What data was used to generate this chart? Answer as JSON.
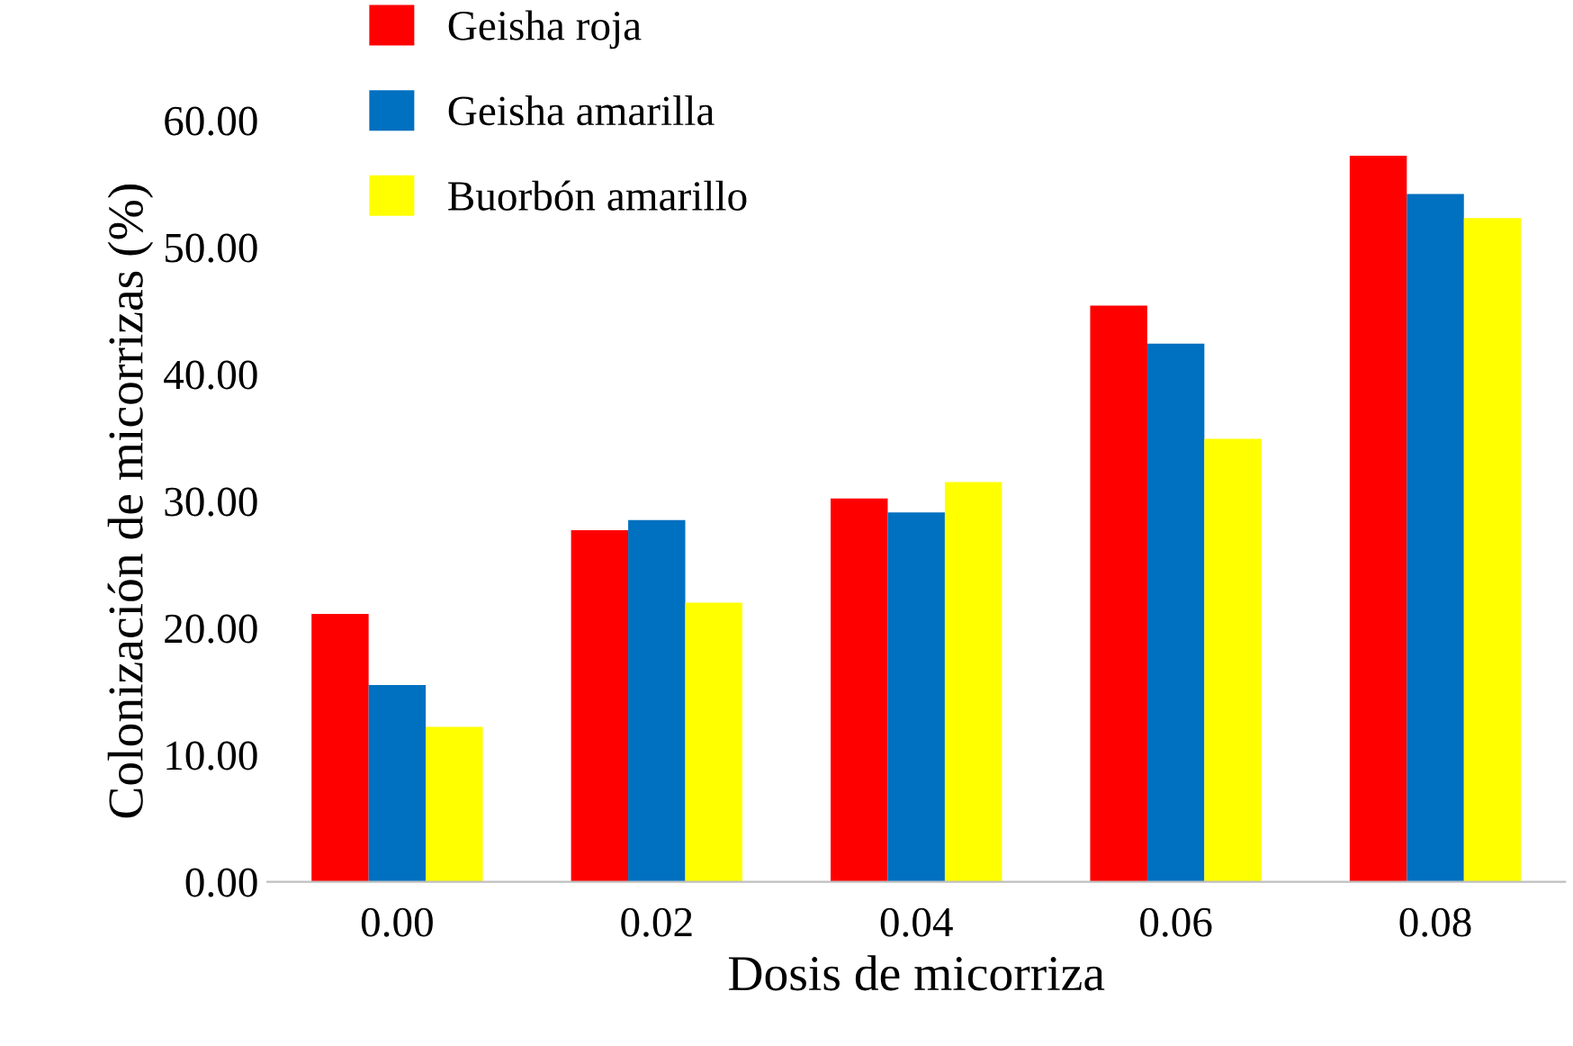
{
  "chart_data": {
    "type": "bar",
    "xlabel": "Dosis de micorriza",
    "ylabel": "Colonización de micorrizas (%)",
    "categories": [
      "0.00",
      "0.02",
      "0.04",
      "0.06",
      "0.08"
    ],
    "series": [
      {
        "name": "Geisha roja",
        "color": "#ff0000",
        "values": [
          21.1,
          27.7,
          30.2,
          45.4,
          57.2
        ]
      },
      {
        "name": "Geisha amarilla",
        "color": "#0070c0",
        "values": [
          15.5,
          28.5,
          29.1,
          42.4,
          54.2
        ]
      },
      {
        "name": "Buorbón amarillo",
        "color": "#ffff00",
        "values": [
          12.2,
          22.0,
          31.5,
          34.9,
          52.3
        ]
      }
    ],
    "ylim": [
      0,
      60
    ],
    "yticks": [
      {
        "value": 0,
        "label": "0.00"
      },
      {
        "value": 10,
        "label": "10.00"
      },
      {
        "value": 20,
        "label": "20.00"
      },
      {
        "value": 30,
        "label": "30.00"
      },
      {
        "value": 40,
        "label": "40.00"
      },
      {
        "value": 50,
        "label": "50.00"
      },
      {
        "value": 60,
        "label": "60.00"
      }
    ],
    "grid": false,
    "legend": "top left"
  }
}
